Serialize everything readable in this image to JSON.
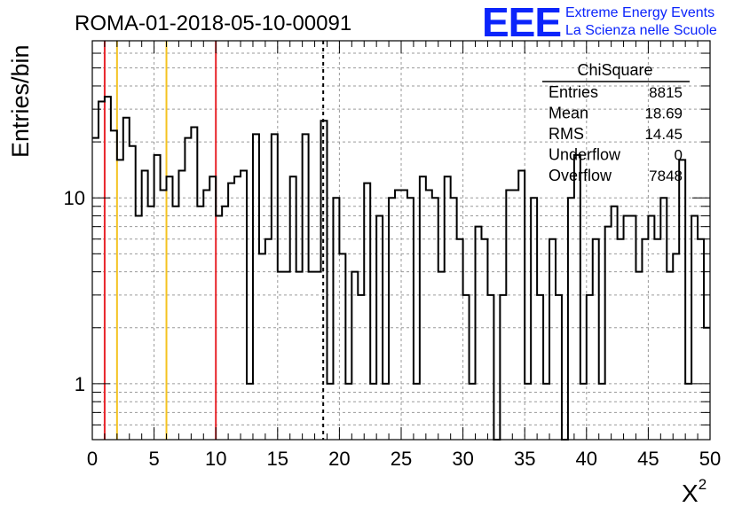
{
  "chart_data": {
    "type": "histogram",
    "title": "ROMA-01-2018-05-10-00091",
    "xlabel": "X",
    "xlabel_superscript": "2",
    "ylabel": "Entries/bin",
    "xlim": [
      0,
      50
    ],
    "ylim": [
      0.5,
      70
    ],
    "log_y": true,
    "grid": true,
    "bin_width": 0.5,
    "x_ticks": [
      0,
      5,
      10,
      15,
      20,
      25,
      30,
      35,
      40,
      45,
      50
    ],
    "x_tick_labels": [
      "0",
      "5",
      "10",
      "15",
      "20",
      "25",
      "30",
      "35",
      "40",
      "45",
      "50"
    ],
    "y_tick_labels": [
      {
        "value": 1,
        "label": "1"
      },
      {
        "value": 10,
        "label": "10"
      }
    ],
    "bin_contents": [
      21,
      33,
      35,
      23,
      16,
      27,
      19,
      8,
      14,
      9,
      17,
      11,
      13,
      9,
      14,
      21,
      24,
      9,
      11,
      13,
      8,
      9,
      12,
      13,
      14,
      1,
      22,
      5,
      6,
      22,
      4,
      4,
      13,
      4,
      22,
      4,
      4,
      26,
      1,
      10,
      5,
      1,
      4,
      3,
      12,
      1,
      8,
      1,
      10,
      11,
      11,
      10,
      1,
      13,
      11,
      10,
      4,
      13,
      10,
      6,
      3,
      1,
      7,
      6,
      3,
      0.1,
      3,
      11,
      11,
      14,
      1,
      10,
      3,
      1,
      6,
      3,
      0.1,
      10,
      17,
      1,
      3,
      6,
      1,
      7,
      9,
      6,
      8,
      8,
      4,
      6,
      8,
      6,
      10,
      4,
      5,
      16,
      1,
      8,
      6,
      2
    ],
    "vertical_lines": [
      {
        "x": 1,
        "color": "#e8252b",
        "style": "solid"
      },
      {
        "x": 2,
        "color": "#f4c320",
        "style": "solid"
      },
      {
        "x": 6,
        "color": "#f4c320",
        "style": "solid"
      },
      {
        "x": 10,
        "color": "#e8252b",
        "style": "solid"
      },
      {
        "x": 18.69,
        "color": "#000000",
        "style": "dashed"
      }
    ],
    "stats": {
      "name": "ChiSquare",
      "rows": [
        {
          "label": "Entries",
          "value": "8815"
        },
        {
          "label": "Mean",
          "value": "18.69"
        },
        {
          "label": "RMS",
          "value": "14.45"
        },
        {
          "label": "Underflow",
          "value": "0"
        },
        {
          "label": "Overflow",
          "value": "7848"
        }
      ]
    }
  },
  "logo": {
    "mark": "EEE",
    "line1": "Extreme Energy Events",
    "line2": "La Scienza nelle Scuole",
    "color": "#0b24fb"
  }
}
